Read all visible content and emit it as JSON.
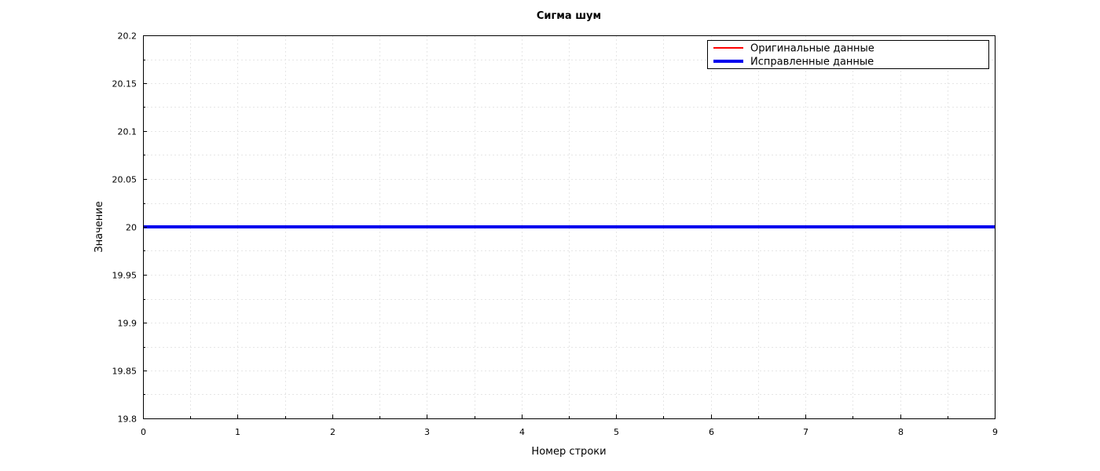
{
  "chart_data": {
    "type": "line",
    "title": "Сигма шум",
    "xlabel": "Номер строки",
    "ylabel": "Значение",
    "xlim": [
      0,
      9
    ],
    "ylim": [
      19.8,
      20.2
    ],
    "x_ticks": [
      0,
      1,
      2,
      3,
      4,
      5,
      6,
      7,
      8,
      9
    ],
    "x_tick_labels": [
      "0",
      "1",
      "2",
      "3",
      "4",
      "5",
      "6",
      "7",
      "8",
      "9"
    ],
    "y_ticks": [
      19.8,
      19.85,
      19.9,
      19.95,
      20,
      20.05,
      20.1,
      20.15,
      20.2
    ],
    "y_tick_labels": [
      "19.8",
      "19.85",
      "19.9",
      "19.95",
      "20",
      "20.05",
      "20.1",
      "20.15",
      "20.2"
    ],
    "grid": true,
    "legend_position": "top-right",
    "series": [
      {
        "name": "Оригинальные данные",
        "color": "#ff0000",
        "x": [
          0,
          1,
          2,
          3,
          4,
          5,
          6,
          7,
          8,
          9
        ],
        "values": [
          20,
          20,
          20,
          20,
          20,
          20,
          20,
          20,
          20,
          20
        ]
      },
      {
        "name": "Исправленные данные",
        "color": "#0000ee",
        "x": [
          0,
          1,
          2,
          3,
          4,
          5,
          6,
          7,
          8,
          9
        ],
        "values": [
          20,
          20,
          20,
          20,
          20,
          20,
          20,
          20,
          20,
          20
        ]
      }
    ]
  }
}
